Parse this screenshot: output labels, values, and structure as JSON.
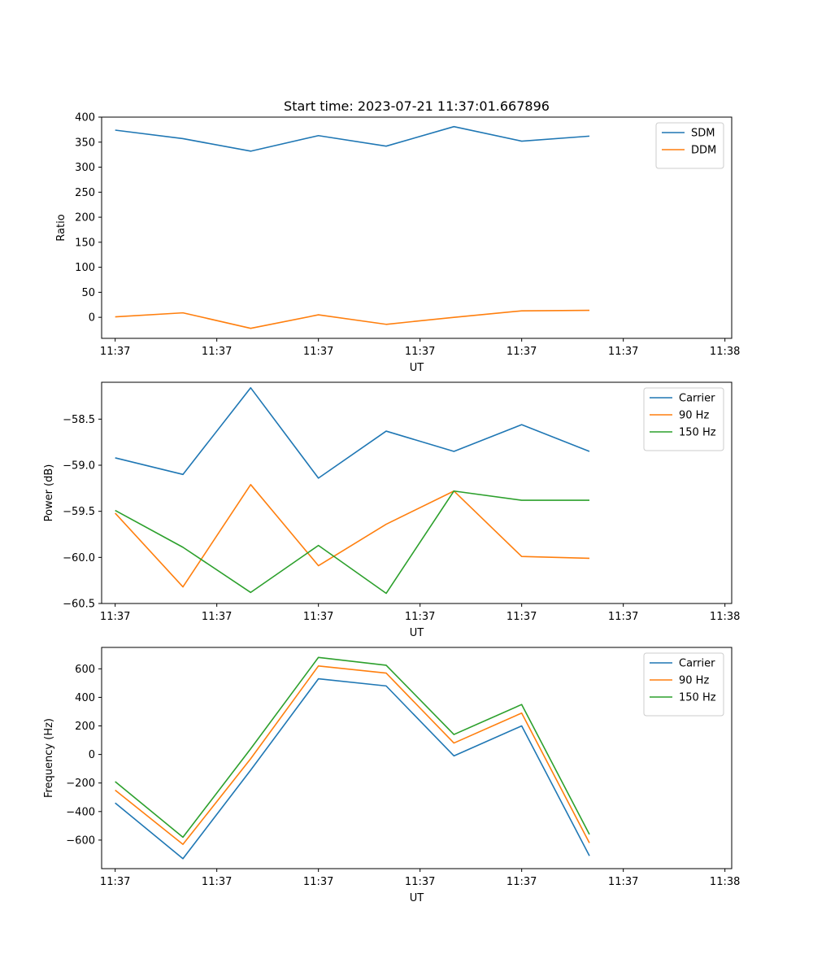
{
  "figure_title": "Start time: 2023-07-21 11:37:01.667896",
  "colors": {
    "blue": "#1f77b4",
    "orange": "#ff7f0e",
    "green": "#2ca02c"
  },
  "chart_data": [
    {
      "type": "line",
      "title": "Start time: 2023-07-21 11:37:01.667896",
      "xlabel": "UT",
      "ylabel": "Ratio",
      "x": [
        1,
        2,
        3,
        4,
        5,
        6,
        7,
        8
      ],
      "xlim": [
        0.8,
        10.1
      ],
      "xticks": [
        1,
        2.5,
        4,
        5.5,
        7,
        8.5,
        10
      ],
      "xtick_labels": [
        "11:37",
        "11:37",
        "11:37",
        "11:37",
        "11:37",
        "11:37",
        "11:38"
      ],
      "ylim": [
        -42,
        400
      ],
      "yticks": [
        0,
        50,
        100,
        150,
        200,
        250,
        300,
        350,
        400
      ],
      "yticks_labels": [
        "0",
        "50",
        "100",
        "150",
        "200",
        "250",
        "300",
        "350",
        "400"
      ],
      "legend": "top-right",
      "series": [
        {
          "name": "SDM",
          "color": "#1f77b4",
          "values": [
            374,
            357,
            332,
            363,
            342,
            381,
            352,
            362
          ]
        },
        {
          "name": "DDM",
          "color": "#ff7f0e",
          "values": [
            1,
            9,
            -22,
            5,
            -14,
            0,
            13,
            14
          ]
        }
      ]
    },
    {
      "type": "line",
      "title": "",
      "xlabel": "UT",
      "ylabel": "Power (dB)",
      "x": [
        1,
        2,
        3,
        4,
        5,
        6,
        7,
        8
      ],
      "xlim": [
        0.8,
        10.1
      ],
      "xticks": [
        1,
        2.5,
        4,
        5.5,
        7,
        8.5,
        10
      ],
      "xtick_labels": [
        "11:37",
        "11:37",
        "11:37",
        "11:37",
        "11:37",
        "11:37",
        "11:38"
      ],
      "ylim": [
        -60.5,
        -58.1
      ],
      "yticks": [
        -60.5,
        -60.0,
        -59.5,
        -59.0,
        -58.5
      ],
      "yticks_labels": [
        "−60.5",
        "−60.0",
        "−59.5",
        "−59.0",
        "−58.5"
      ],
      "legend": "top-right",
      "series": [
        {
          "name": "Carrier",
          "color": "#1f77b4",
          "values": [
            -58.92,
            -59.1,
            -58.16,
            -59.14,
            -58.63,
            -58.85,
            -58.56,
            -58.85
          ]
        },
        {
          "name": "90 Hz",
          "color": "#ff7f0e",
          "values": [
            -59.52,
            -60.32,
            -59.21,
            -60.09,
            -59.64,
            -59.28,
            -59.99,
            -60.01
          ]
        },
        {
          "name": "150 Hz",
          "color": "#2ca02c",
          "values": [
            -59.49,
            -59.89,
            -60.38,
            -59.87,
            -60.39,
            -59.28,
            -59.38,
            -59.38
          ]
        }
      ]
    },
    {
      "type": "line",
      "title": "",
      "xlabel": "UT",
      "ylabel": "Frequency (Hz)",
      "x": [
        1,
        2,
        3,
        4,
        5,
        6,
        7,
        8
      ],
      "xlim": [
        0.8,
        10.1
      ],
      "xticks": [
        1,
        2.5,
        4,
        5.5,
        7,
        8.5,
        10
      ],
      "xtick_labels": [
        "11:37",
        "11:37",
        "11:37",
        "11:37",
        "11:37",
        "11:37",
        "11:38"
      ],
      "ylim": [
        -800,
        750
      ],
      "yticks": [
        -600,
        -400,
        -200,
        0,
        200,
        400,
        600
      ],
      "yticks_labels": [
        "−600",
        "−400",
        "−200",
        "0",
        "200",
        "400",
        "600"
      ],
      "legend": "top-right",
      "series": [
        {
          "name": "Carrier",
          "color": "#1f77b4",
          "values": [
            -340,
            -730,
            -110,
            530,
            480,
            -10,
            200,
            -710
          ]
        },
        {
          "name": "90 Hz",
          "color": "#ff7f0e",
          "values": [
            -250,
            -630,
            -30,
            620,
            570,
            80,
            290,
            -620
          ]
        },
        {
          "name": "150 Hz",
          "color": "#2ca02c",
          "values": [
            -190,
            -580,
            40,
            680,
            625,
            140,
            350,
            -560
          ]
        }
      ]
    }
  ]
}
